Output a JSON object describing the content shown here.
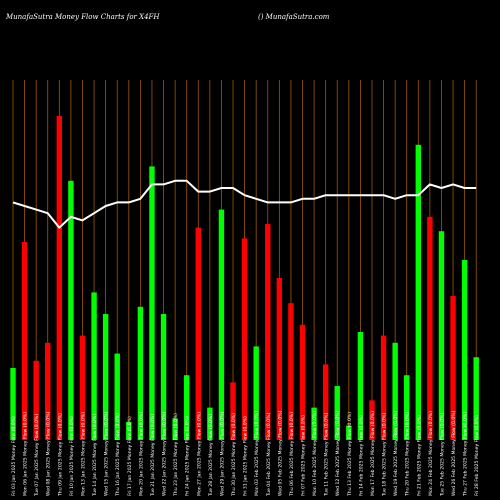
{
  "header": {
    "title": "MunafaSutra  Money Flow  Charts for X4FH",
    "site": "() MunafaSutra.com"
  },
  "colors": {
    "background": "#000000",
    "grid_line": "#a05a00",
    "up_bar": "#00ff00",
    "down_bar": "#ff0000",
    "price_line": "#ffffff",
    "tick_text": "#ffffff"
  },
  "chart_data": {
    "type": "bar",
    "title": "MunafaSutra  Money Flow  Charts for X4FH",
    "ylim": [
      0,
      100
    ],
    "grid": "vertical",
    "categories": [
      "Fri 03 Jan 2025 Money Flow (0.0%)",
      "Mon 06 Jan 2025 Money Flow (0.0%)",
      "Tue 07 Jan 2025 Money Flow (0.0%)",
      "Wed 08 Jan 2025 Money Flow (0.0%)",
      "Thu 09 Jan 2025 Money Flow (0.0%)",
      "Fri 10 Jan 2025 Money Flow (0.0%)",
      "Mon 13 Jan 2025 Money Flow (0.0%)",
      "Tue 14 Jan 2025 Money Flow (0.0%)",
      "Wed 15 Jan 2025 Money Flow (0.0%)",
      "Thu 16 Jan 2025 Money Flow (0.0%)",
      "Fri 17 Jan 2025 Money Flow (0.0%)",
      "Mon 20 Jan 2025 Money Flow (0.0%)",
      "Tue 21 Jan 2025 Money Flow (0.0%)",
      "Wed 22 Jan 2025 Money Flow (0.0%)",
      "Thu 23 Jan 2025 Money Flow (0.0%)",
      "Fri 24 Jan 2025 Money Flow (0.0%)",
      "Mon 27 Jan 2025 Money Flow (0.0%)",
      "Tue 28 Jan 2025 Money Flow (0.0%)",
      "Wed 29 Jan 2025 Money Flow (0.0%)",
      "Thu 30 Jan 2025 Money Flow (0.0%)",
      "Fri 31 Jan 2025 Money Flow (0.0%)",
      "Mon 03 Feb 2025 Money Flow (0.0%)",
      "Tue 04 Feb 2025 Money Flow (0.0%)",
      "Wed 05 Feb 2025 Money Flow (0.0%)",
      "Thu 06 Feb 2025 Money Flow (0.0%)",
      "Fri 07 Feb 2025 Money Flow (0.0%)",
      "Mon 10 Feb 2025 Money Flow (0.0%)",
      "Tue 11 Feb 2025 Money Flow (0.0%)",
      "Wed 12 Feb 2025 Money Flow (0.0%)",
      "Thu 13 Feb 2025 Money Flow (0.0%)",
      "Fri 14 Feb 2025 Money Flow (0.0%)",
      "Mon 17 Feb 2025 Money Flow (0.0%)",
      "Tue 18 Feb 2025 Money Flow (0.0%)",
      "Wed 19 Feb 2025 Money Flow (0.0%)",
      "Thu 20 Feb 2025 Money Flow (0.0%)",
      "Fri 21 Feb 2025 Money Flow (0.0%)",
      "Mon 24 Feb 2025 Money Flow (0.0%)",
      "Tue 25 Feb 2025 Money Flow (0.0%)",
      "Wed 26 Feb 2025 Money Flow (0.0%)",
      "Thu 27 Feb 2025 Money Flow (0.0%)",
      "Fri 28 Feb 2025 Money Flow (0.0%)"
    ],
    "series": [
      {
        "kind": "money_flow_bars",
        "values": [
          20,
          55,
          22,
          27,
          90,
          72,
          29,
          41,
          35,
          24,
          5,
          37,
          76,
          35,
          6,
          18,
          59,
          9,
          64,
          16,
          56,
          26,
          60,
          45,
          38,
          32,
          9,
          21,
          15,
          4,
          30,
          11,
          29,
          27,
          18,
          82,
          62,
          58,
          40,
          50,
          23
        ],
        "direction": [
          "up",
          "down",
          "down",
          "down",
          "down",
          "up",
          "down",
          "up",
          "up",
          "up",
          "up",
          "up",
          "up",
          "up",
          "up",
          "up",
          "down",
          "up",
          "up",
          "down",
          "down",
          "up",
          "down",
          "down",
          "down",
          "down",
          "up",
          "down",
          "up",
          "up",
          "up",
          "down",
          "down",
          "up",
          "up",
          "up",
          "down",
          "up",
          "down",
          "up",
          "up"
        ]
      },
      {
        "kind": "price_line",
        "values": [
          66,
          65,
          64,
          63,
          59,
          62,
          61,
          63,
          65,
          66,
          66,
          67,
          71,
          71,
          72,
          72,
          69,
          69,
          70,
          70,
          68,
          67,
          66,
          66,
          66,
          67,
          67,
          68,
          68,
          68,
          68,
          68,
          68,
          67,
          68,
          68,
          71,
          70,
          71,
          70,
          70
        ]
      }
    ]
  }
}
